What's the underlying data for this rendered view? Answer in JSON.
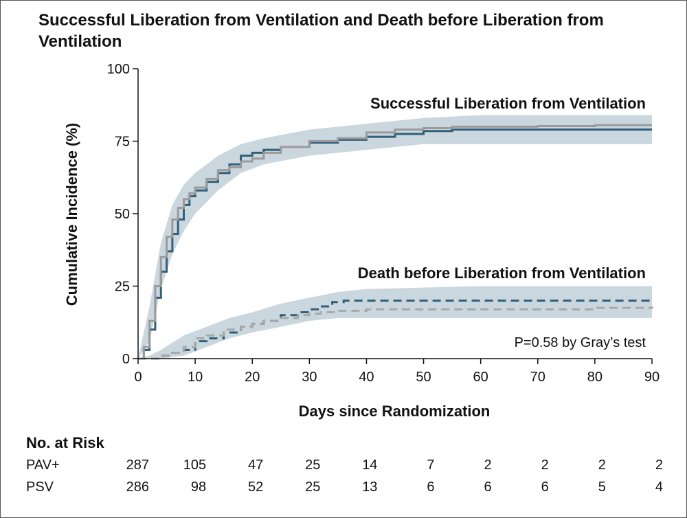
{
  "title": "Successful Liberation from Ventilation and Death before Liberation from Ventilation",
  "chart_data": {
    "type": "line",
    "xlabel": "Days since Randomization",
    "ylabel": "Cumulative Incidence (%)",
    "xlim": [
      0,
      90
    ],
    "ylim": [
      0,
      100
    ],
    "xticks": [
      0,
      10,
      20,
      30,
      40,
      50,
      60,
      70,
      80,
      90
    ],
    "yticks": [
      0,
      25,
      50,
      75,
      100
    ],
    "annotations": {
      "liberation": "Successful Liberation from Ventilation",
      "death": "Death before Liberation from Ventilation",
      "pvalue": "P=0.58 by Gray’s test"
    },
    "series": [
      {
        "group": "liberation",
        "arm": "PAV+",
        "color": "#2f5f7a",
        "style": "solid",
        "x": [
          0,
          1,
          2,
          3,
          4,
          5,
          6,
          7,
          8,
          9,
          10,
          12,
          14,
          16,
          18,
          20,
          22,
          25,
          30,
          35,
          40,
          45,
          50,
          55,
          60,
          70,
          80,
          90
        ],
        "y": [
          0,
          3,
          10,
          21,
          30,
          37,
          43,
          48,
          53,
          56,
          58,
          61,
          64,
          67,
          70,
          71,
          72,
          73,
          74.5,
          75.5,
          76.5,
          77.5,
          78.5,
          79,
          79,
          79,
          79,
          79
        ]
      },
      {
        "group": "liberation",
        "arm": "PSV",
        "color": "#9a9a9a",
        "style": "solid",
        "x": [
          0,
          1,
          2,
          3,
          4,
          5,
          6,
          7,
          8,
          9,
          10,
          12,
          14,
          16,
          18,
          20,
          22,
          25,
          30,
          35,
          40,
          45,
          50,
          55,
          60,
          70,
          80,
          90
        ],
        "y": [
          0,
          4,
          13,
          25,
          35,
          42,
          48,
          52,
          55,
          57,
          59,
          62,
          65,
          66,
          68,
          69,
          71,
          73,
          75,
          76,
          78,
          79,
          79.5,
          80,
          80,
          80.2,
          80.5,
          80.5
        ]
      },
      {
        "group": "death",
        "arm": "PAV+",
        "color": "#2f5f7a",
        "style": "dashed",
        "x": [
          0,
          2,
          4,
          6,
          8,
          10,
          12,
          15,
          18,
          20,
          22,
          25,
          28,
          30,
          32,
          34,
          36,
          40,
          50,
          60,
          70,
          80,
          90
        ],
        "y": [
          0,
          0,
          1,
          2,
          3,
          6,
          7,
          9,
          11,
          12,
          13,
          15,
          16,
          17,
          18,
          19.5,
          20,
          20,
          20,
          20,
          20,
          20,
          20
        ]
      },
      {
        "group": "death",
        "arm": "PSV",
        "color": "#a8a8a8",
        "style": "dashed",
        "x": [
          0,
          2,
          4,
          6,
          8,
          10,
          12,
          15,
          18,
          20,
          22,
          25,
          28,
          30,
          32,
          35,
          40,
          50,
          60,
          70,
          80,
          90
        ],
        "y": [
          0,
          0,
          1,
          2,
          4,
          7,
          8,
          10,
          11,
          12,
          13,
          14,
          15,
          15.5,
          16,
          16.5,
          17,
          17,
          17,
          17,
          17.5,
          18
        ]
      }
    ],
    "bands": [
      {
        "group": "liberation",
        "color": "#b9c9d3",
        "x": [
          0,
          2,
          4,
          6,
          8,
          10,
          14,
          18,
          22,
          30,
          40,
          50,
          60,
          90
        ],
        "lo": [
          0,
          6,
          24,
          36,
          44,
          50,
          58,
          64,
          67,
          70,
          72,
          74,
          74,
          74
        ],
        "hi": [
          0,
          18,
          40,
          53,
          60,
          64,
          70,
          74,
          76,
          79,
          81,
          83,
          84,
          84
        ]
      },
      {
        "group": "death",
        "color": "#b9c9d3",
        "x": [
          0,
          2,
          4,
          8,
          12,
          16,
          20,
          25,
          30,
          35,
          40,
          60,
          90
        ],
        "lo": [
          0,
          0,
          0,
          1,
          4,
          7,
          9,
          11,
          13,
          14,
          14,
          14,
          14
        ],
        "hi": [
          0,
          1,
          3,
          8,
          11,
          14,
          16,
          19,
          21,
          23,
          24,
          25,
          25
        ]
      }
    ]
  },
  "risk_table": {
    "heading": "No. at Risk",
    "rows": [
      {
        "label": "PAV+",
        "values": [
          "287",
          "105",
          "47",
          "25",
          "14",
          "7",
          "2",
          "2",
          "2",
          "2"
        ]
      },
      {
        "label": "PSV",
        "values": [
          "286",
          "98",
          "52",
          "25",
          "13",
          "6",
          "6",
          "6",
          "5",
          "4"
        ]
      }
    ]
  }
}
